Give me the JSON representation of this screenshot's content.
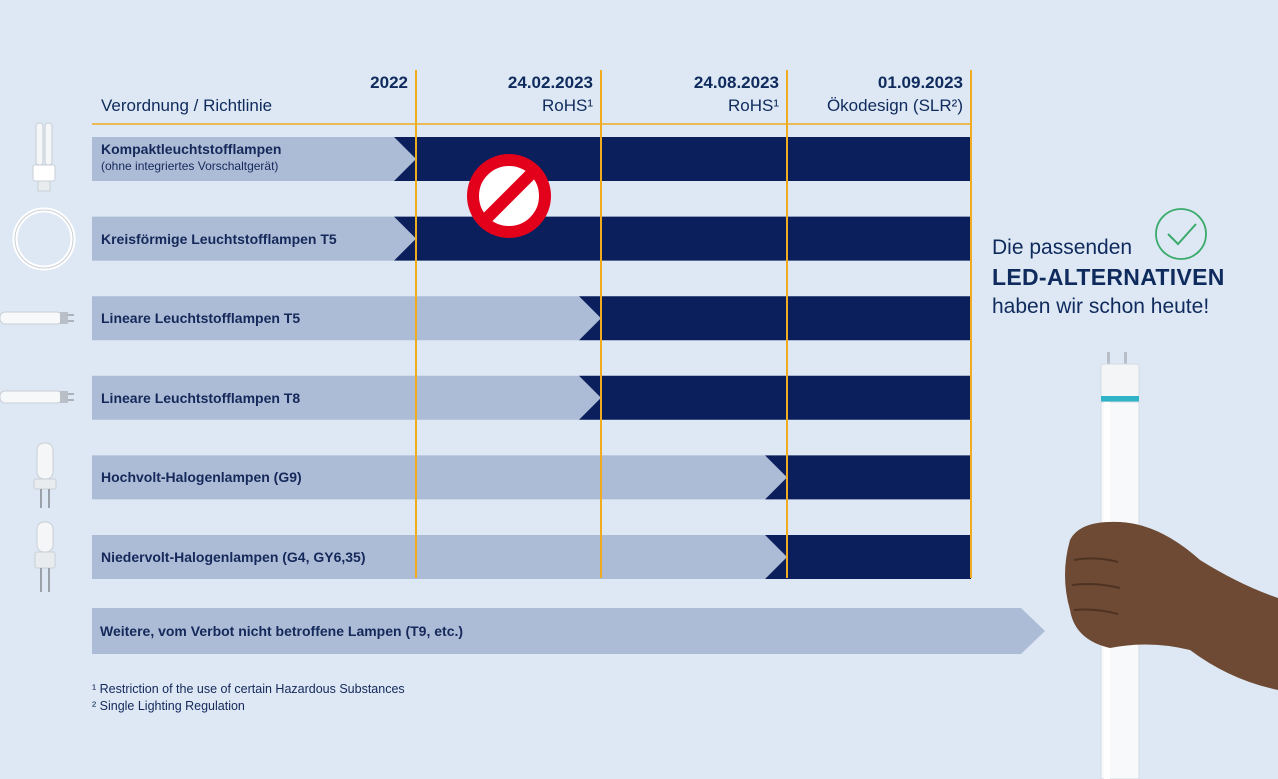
{
  "header": {
    "column_label": "Verordnung / Richtlinie",
    "columns": [
      {
        "date": "2022",
        "sub": ""
      },
      {
        "date": "24.02.2023",
        "sub": "RoHS¹"
      },
      {
        "date": "24.08.2023",
        "sub": "RoHS¹"
      },
      {
        "date": "01.09.2023",
        "sub": "Ökodesign (SLR²)"
      }
    ]
  },
  "rows": [
    {
      "label": "Kompaktleuchtstofflampen",
      "sub": "(ohne integriertes Vorschaltgerät)",
      "ban_from": 1,
      "icon": "compact-lamp-icon"
    },
    {
      "label": "Kreisförmige Leuchtstofflampen T5",
      "sub": "",
      "ban_from": 1,
      "icon": "circular-lamp-icon"
    },
    {
      "label": "Lineare Leuchtstofflampen T5",
      "sub": "",
      "ban_from": 2,
      "icon": "tube-lamp-icon"
    },
    {
      "label": "Lineare Leuchtstofflampen T8",
      "sub": "",
      "ban_from": 2,
      "icon": "tube-lamp-icon"
    },
    {
      "label": "Hochvolt-Halogenlampen (G9)",
      "sub": "",
      "ban_from": 3,
      "icon": "halogen-capsule-icon"
    },
    {
      "label": "Niedervolt-Halogenlampen (G4, GY6,35)",
      "sub": "",
      "ban_from": 3,
      "icon": "halogen-pin-icon"
    }
  ],
  "unaffected_row": {
    "label": "Weitere, vom Verbot nicht betroffene Lampen (T9, etc.)"
  },
  "footnotes": [
    "¹ Restriction of the use of certain Hazardous Substances",
    "² Single Lighting Regulation"
  ],
  "led_callout": {
    "line1": "Die passenden",
    "line2": "LED-ALTERNATIVEN",
    "line3": "haben wir schon heute!",
    "icon": "checkmark-circle-icon"
  },
  "ban_icon": "prohibition-sign-icon",
  "colors": {
    "background": "#dde8f4",
    "bar_light": "#adbcd6",
    "bar_dark": "#0b1f5c",
    "divider": "#f0ab1f",
    "text": "#14285a",
    "ban_red": "#e3001b",
    "check_green": "#3aab6a"
  }
}
